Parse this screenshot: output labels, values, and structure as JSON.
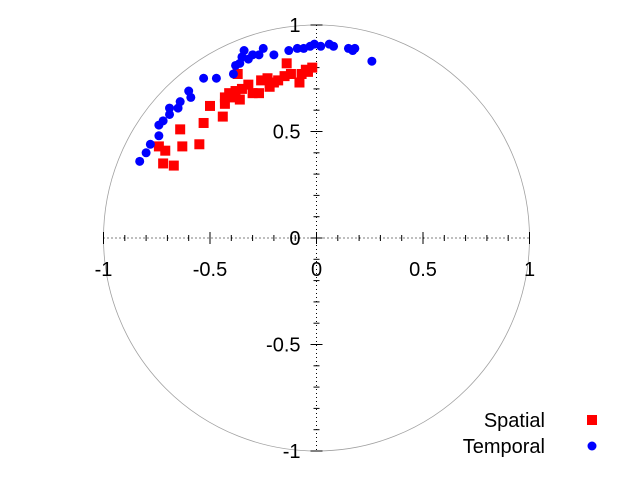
{
  "chart_data": {
    "type": "scatter",
    "title": "",
    "xlabel": "",
    "ylabel": "",
    "xlim": [
      -1,
      1
    ],
    "ylim": [
      -1,
      1
    ],
    "boundary": "unit-circle",
    "grid": false,
    "legend_position": "bottom-right",
    "x_ticks": [
      "-1",
      "-0.5",
      "0",
      "0.5",
      "1"
    ],
    "y_ticks": [
      "-1",
      "-0.5",
      "0",
      "0.5",
      "1"
    ],
    "series": [
      {
        "name": "Spatial",
        "marker": "square",
        "color": "#ff0000",
        "points": [
          [
            -0.74,
            0.43
          ],
          [
            -0.72,
            0.35
          ],
          [
            -0.71,
            0.41
          ],
          [
            -0.67,
            0.34
          ],
          [
            -0.64,
            0.51
          ],
          [
            -0.63,
            0.43
          ],
          [
            -0.55,
            0.44
          ],
          [
            -0.53,
            0.54
          ],
          [
            -0.5,
            0.62
          ],
          [
            -0.44,
            0.57
          ],
          [
            -0.43,
            0.63
          ],
          [
            -0.43,
            0.66
          ],
          [
            -0.41,
            0.68
          ],
          [
            -0.39,
            0.66
          ],
          [
            -0.38,
            0.69
          ],
          [
            -0.37,
            0.77
          ],
          [
            -0.36,
            0.65
          ],
          [
            -0.35,
            0.7
          ],
          [
            -0.32,
            0.72
          ],
          [
            -0.3,
            0.68
          ],
          [
            -0.27,
            0.68
          ],
          [
            -0.26,
            0.74
          ],
          [
            -0.23,
            0.75
          ],
          [
            -0.22,
            0.71
          ],
          [
            -0.2,
            0.73
          ],
          [
            -0.18,
            0.74
          ],
          [
            -0.15,
            0.76
          ],
          [
            -0.14,
            0.82
          ],
          [
            -0.12,
            0.77
          ],
          [
            -0.08,
            0.73
          ],
          [
            -0.07,
            0.77
          ],
          [
            -0.05,
            0.79
          ],
          [
            -0.04,
            0.78
          ],
          [
            -0.02,
            0.8
          ]
        ]
      },
      {
        "name": "Temporal",
        "marker": "circle",
        "color": "#0000ff",
        "points": [
          [
            -0.83,
            0.36
          ],
          [
            -0.8,
            0.4
          ],
          [
            -0.78,
            0.44
          ],
          [
            -0.74,
            0.48
          ],
          [
            -0.74,
            0.53
          ],
          [
            -0.72,
            0.55
          ],
          [
            -0.69,
            0.58
          ],
          [
            -0.69,
            0.61
          ],
          [
            -0.65,
            0.61
          ],
          [
            -0.64,
            0.64
          ],
          [
            -0.6,
            0.69
          ],
          [
            -0.59,
            0.66
          ],
          [
            -0.53,
            0.75
          ],
          [
            -0.47,
            0.75
          ],
          [
            -0.39,
            0.77
          ],
          [
            -0.38,
            0.81
          ],
          [
            -0.36,
            0.82
          ],
          [
            -0.35,
            0.85
          ],
          [
            -0.34,
            0.88
          ],
          [
            -0.32,
            0.84
          ],
          [
            -0.3,
            0.86
          ],
          [
            -0.27,
            0.86
          ],
          [
            -0.25,
            0.89
          ],
          [
            -0.2,
            0.86
          ],
          [
            -0.13,
            0.88
          ],
          [
            -0.09,
            0.89
          ],
          [
            -0.06,
            0.89
          ],
          [
            -0.03,
            0.9
          ],
          [
            -0.01,
            0.91
          ],
          [
            0.02,
            0.9
          ],
          [
            0.06,
            0.91
          ],
          [
            0.08,
            0.9
          ],
          [
            0.15,
            0.89
          ],
          [
            0.17,
            0.88
          ],
          [
            0.18,
            0.89
          ],
          [
            0.26,
            0.83
          ]
        ]
      }
    ]
  }
}
